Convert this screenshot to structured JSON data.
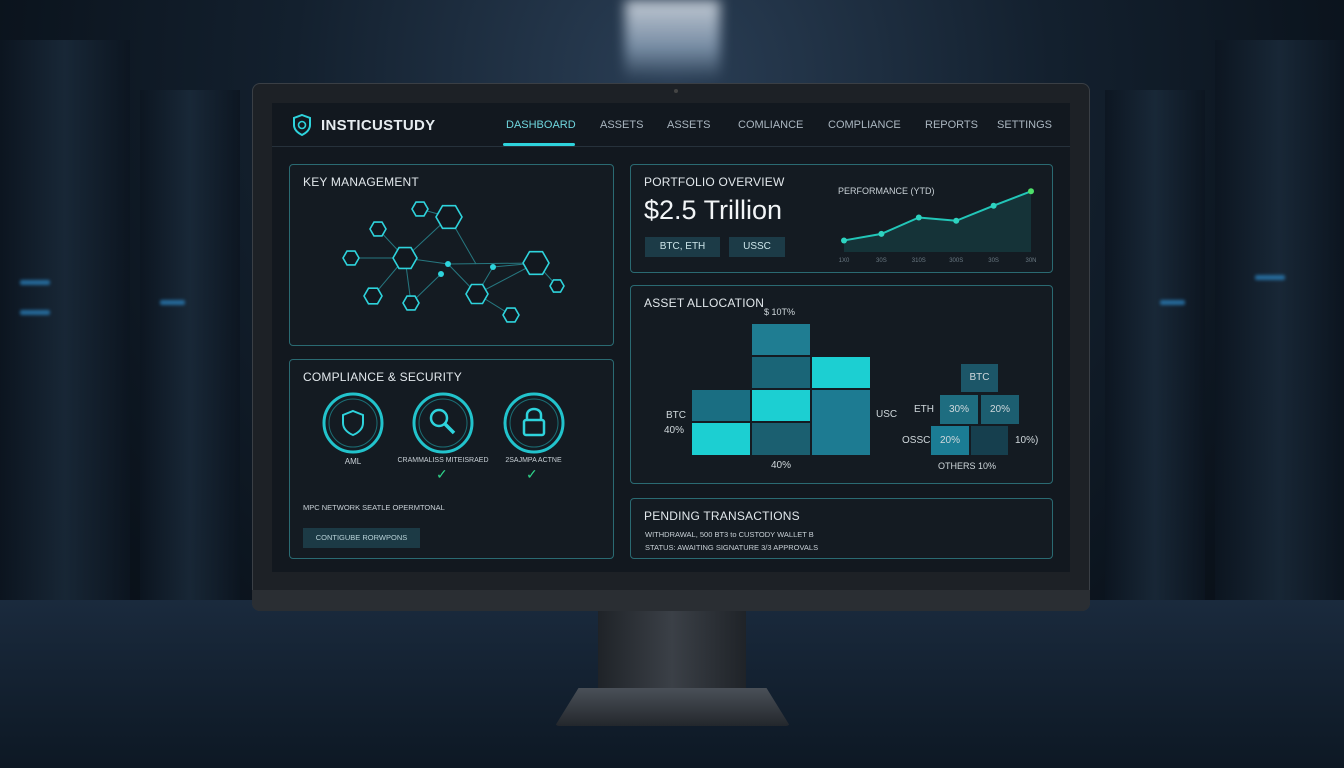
{
  "app": {
    "brand": "INSTICUSTUDY",
    "logo_icon": "shield-icon"
  },
  "nav": {
    "tabs": [
      {
        "label": "DASHBOARD",
        "active": true
      },
      {
        "label": "ASSETS"
      },
      {
        "label": "ASSETS"
      },
      {
        "label": "COMLIANCE"
      },
      {
        "label": "COMPLIANCE"
      },
      {
        "label": "REPORTS"
      },
      {
        "label": "SETTINGS"
      }
    ]
  },
  "key_management": {
    "title": "KEY MANAGEMENT"
  },
  "compliance": {
    "title": "COMPLIANCE & SECURITY",
    "items": [
      {
        "label": "AML",
        "icon": "shield-icon",
        "checked": false
      },
      {
        "label": "CRAMMALISS MITEISRAED",
        "icon": "magnifier-icon",
        "checked": true
      },
      {
        "label": "2SAJMPA ACTNE",
        "icon": "lock-icon",
        "checked": true
      }
    ],
    "status": "MPC NETWORK SEATLE OPERMTONAL",
    "button": "CONTIGUBE RORWPONS"
  },
  "portfolio": {
    "title": "PORTFOLIO OVERVIEW",
    "value": "$2.5 Trillion",
    "chips": [
      "BTC, ETH",
      "USSC"
    ],
    "performance_title": "PERFORMANCE (YTD)",
    "x_labels": [
      "1X0",
      "30S",
      "310S",
      "300S",
      "30S",
      "30N"
    ]
  },
  "chart_data": {
    "type": "line",
    "title": "PERFORMANCE (YTD)",
    "x": [
      "1X0",
      "30S",
      "310S",
      "300S",
      "30S",
      "30N"
    ],
    "values": [
      1,
      2,
      4.5,
      4,
      6.3,
      8.5
    ]
  },
  "allocation": {
    "title": "ASSET ALLOCATION",
    "top_label": "$ 10T%",
    "btc_label": "BTC",
    "btc_pct": "40%",
    "bottom_pct": "40%",
    "usc_label": "USC",
    "legend": {
      "btc": "BTC",
      "eth": "ETH",
      "eth_a": "30%",
      "eth_b": "20%",
      "ossc": "OSSC",
      "ossc_a": "20%",
      "right": "10%)",
      "others": "OTHERS",
      "others_pct": "10%"
    },
    "colors": {
      "bright": "#1ccfd2",
      "mid": "#1f7d92",
      "dark": "#1a6172"
    }
  },
  "pending": {
    "title": "PENDING TRANSACTIONS",
    "line1": "WITHDRAWAL, 500 BT3 to CUSTODY WALLET B",
    "line2": "STATUS: AWAITING SIGNATURE 3/3 APPROVALS"
  }
}
